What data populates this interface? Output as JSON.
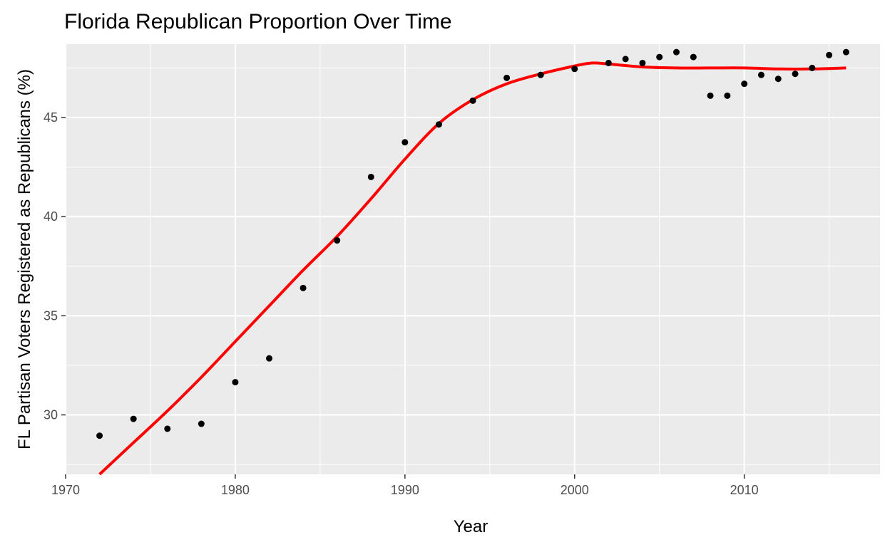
{
  "chart_data": {
    "type": "scatter",
    "title": "Florida Republican Proportion Over Time",
    "xlabel": "Year",
    "ylabel": "FL Partisan Voters Registered as Republicans (%)",
    "xlim": [
      1970,
      2018
    ],
    "ylim": [
      27,
      48.7
    ],
    "x_ticks": [
      1970,
      1980,
      1990,
      2000,
      2010
    ],
    "y_ticks": [
      30,
      35,
      40,
      45
    ],
    "x_minor": [
      1975,
      1985,
      1995,
      2005,
      2015
    ],
    "y_minor": [
      27.5,
      32.5,
      37.5,
      42.5,
      47.5
    ],
    "grid": true,
    "legend": "none",
    "colors": {
      "points": "#000000",
      "smooth": "#ff0000",
      "panel": "#ebebeb",
      "grid": "#ffffff"
    },
    "series": [
      {
        "type": "scatter",
        "x": [
          1972,
          1974,
          1976,
          1978,
          1980,
          1982,
          1984,
          1986,
          1988,
          1990,
          1992,
          1994,
          1996,
          1998,
          2000,
          2002,
          2003,
          2004,
          2005,
          2006,
          2007,
          2008,
          2009,
          2010,
          2011,
          2012,
          2013,
          2014,
          2015,
          2016
        ],
        "y": [
          28.95,
          29.8,
          29.3,
          29.55,
          31.65,
          32.85,
          36.4,
          38.8,
          42.0,
          43.75,
          44.65,
          45.85,
          47.0,
          47.15,
          47.45,
          47.75,
          47.95,
          47.75,
          48.05,
          48.3,
          48.05,
          46.1,
          46.1,
          46.7,
          47.15,
          46.95,
          47.2,
          47.5,
          48.15,
          48.3
        ]
      },
      {
        "type": "line",
        "x": [
          1972,
          1974,
          1976,
          1978,
          1980,
          1982,
          1984,
          1986,
          1988,
          1990,
          1992,
          1994,
          1996,
          1998,
          2000,
          2001,
          2002,
          2004,
          2006,
          2008,
          2010,
          2012,
          2014,
          2016
        ],
        "y": [
          27.0,
          28.6,
          30.2,
          31.9,
          33.7,
          35.5,
          37.3,
          39.0,
          40.9,
          42.9,
          44.7,
          45.9,
          46.7,
          47.2,
          47.6,
          47.75,
          47.7,
          47.55,
          47.5,
          47.5,
          47.5,
          47.45,
          47.45,
          47.5
        ]
      }
    ]
  }
}
